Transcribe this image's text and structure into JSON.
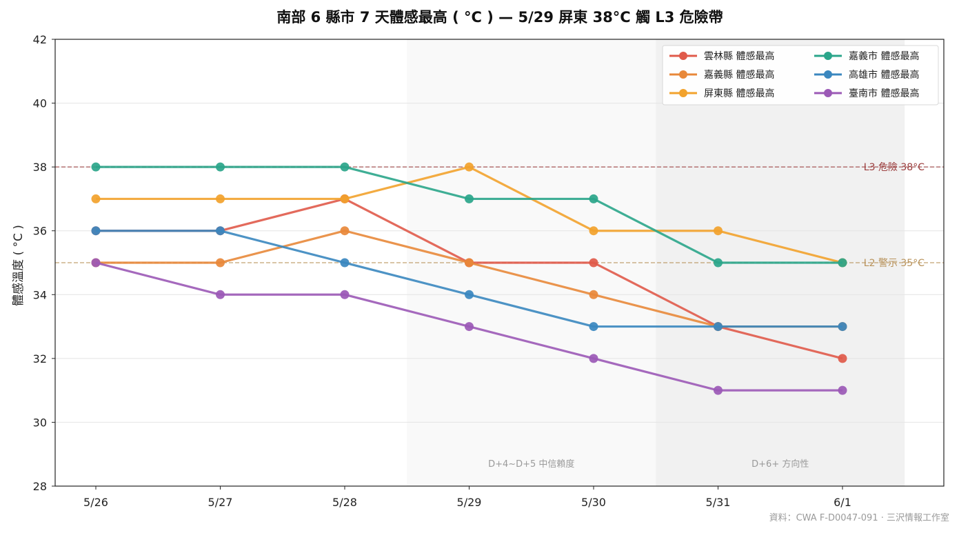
{
  "chart_data": {
    "type": "line",
    "title": "南部 6 縣市 7 天體感最高 ( °C ) — 5/29 屏東 38°C 觸 L3 危險帶",
    "xlabel": "",
    "ylabel": "體感溫度 ( °C )",
    "categories": [
      "5/26",
      "5/27",
      "5/28",
      "5/29",
      "5/30",
      "5/31",
      "6/1"
    ],
    "ylim": [
      28,
      42
    ],
    "yticks": [
      28,
      30,
      32,
      34,
      36,
      38,
      40,
      42
    ],
    "grid": "horizontal",
    "legend": {
      "placement": "top-right",
      "columns": 2
    },
    "series": [
      {
        "name": "雲林縣 體感最高",
        "color": "#e05a4a",
        "values": [
          36,
          36,
          37,
          35,
          35,
          33,
          32
        ]
      },
      {
        "name": "嘉義縣 體感最高",
        "color": "#e8883a",
        "values": [
          35,
          35,
          36,
          35,
          34,
          33,
          33
        ]
      },
      {
        "name": "屏東縣 體感最高",
        "color": "#f2a22c",
        "values": [
          37,
          37,
          37,
          38,
          36,
          36,
          35
        ]
      },
      {
        "name": "嘉義市 體感最高",
        "color": "#2aa58a",
        "values": [
          38,
          38,
          38,
          37,
          37,
          35,
          35
        ]
      },
      {
        "name": "高雄市 體感最高",
        "color": "#3a87bf",
        "values": [
          36,
          36,
          35,
          34,
          33,
          33,
          33
        ]
      },
      {
        "name": "臺南市 體感最高",
        "color": "#9b59b6",
        "values": [
          35,
          34,
          34,
          33,
          32,
          31,
          31
        ]
      }
    ],
    "reference_lines": [
      {
        "label": "L3 危險 38°C",
        "value": 38,
        "color": "#9b3d3d"
      },
      {
        "label": "L2 警示 35°C",
        "value": 35,
        "color": "#b8925a"
      }
    ],
    "shaded_bands": [
      {
        "label": "D+4~D+5 中信賴度",
        "from_category": "5/29",
        "to_category": "5/30",
        "fill": "#f9f9f9"
      },
      {
        "label": "D+6+ 方向性",
        "from_category": "5/31",
        "to_category": "6/1",
        "fill": "#f1f1f1"
      }
    ],
    "source": "資料：CWA F-D0047-091 · 三沢情報工作室"
  }
}
